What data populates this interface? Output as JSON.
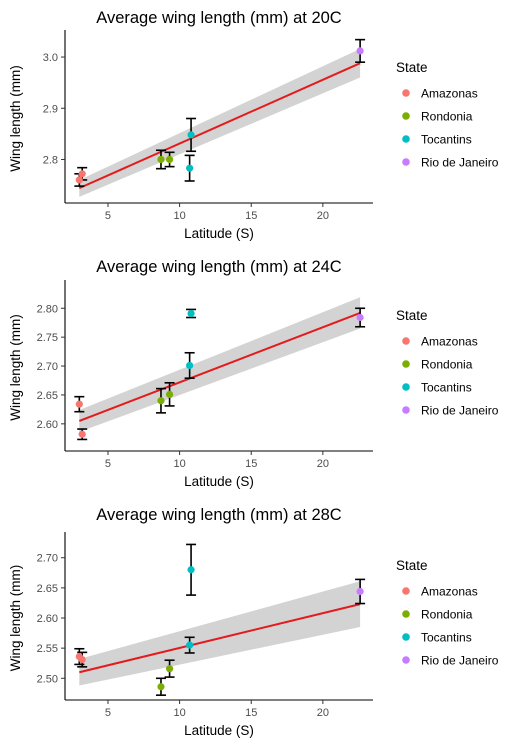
{
  "chart_data": [
    {
      "type": "scatter",
      "title": "Average wing length (mm) at 20C",
      "xlabel": "Latitude (S)",
      "ylabel": "Wing length (mm)",
      "xlim": [
        2,
        23.5
      ],
      "ylim": [
        2.715,
        3.045
      ],
      "xticks": [
        5,
        10,
        15,
        20
      ],
      "yticks": [
        2.8,
        2.9,
        3.0
      ],
      "ytick_labels": [
        "2.8",
        "2.9",
        "3.0"
      ],
      "points": [
        {
          "state": "Amazonas",
          "x": 3.0,
          "y": 2.76,
          "err": 0.012
        },
        {
          "state": "Amazonas",
          "x": 3.2,
          "y": 2.772,
          "err": 0.012
        },
        {
          "state": "Rondonia",
          "x": 8.7,
          "y": 2.8,
          "err": 0.018
        },
        {
          "state": "Rondonia",
          "x": 9.3,
          "y": 2.8,
          "err": 0.014
        },
        {
          "state": "Tocantins",
          "x": 10.7,
          "y": 2.783,
          "err": 0.025
        },
        {
          "state": "Tocantins",
          "x": 10.8,
          "y": 2.848,
          "err": 0.032
        },
        {
          "state": "Rio de Janeiro",
          "x": 22.6,
          "y": 3.012,
          "err": 0.022
        }
      ],
      "fit": {
        "x": [
          3.0,
          22.6
        ],
        "y": [
          2.744,
          2.988
        ],
        "band_start": [
          2.727,
          2.76
        ],
        "band_end": [
          2.96,
          3.016
        ]
      }
    },
    {
      "type": "scatter",
      "title": "Average wing length (mm) at 24C",
      "xlabel": "Latitude (S)",
      "ylabel": "Wing length (mm)",
      "xlim": [
        2,
        23.5
      ],
      "ylim": [
        2.553,
        2.842
      ],
      "xticks": [
        5,
        10,
        15,
        20
      ],
      "yticks": [
        2.6,
        2.65,
        2.7,
        2.75,
        2.8
      ],
      "ytick_labels": [
        "2.60",
        "2.65",
        "2.70",
        "2.75",
        "2.80"
      ],
      "points": [
        {
          "state": "Amazonas",
          "x": 3.0,
          "y": 2.634,
          "err": 0.013
        },
        {
          "state": "Amazonas",
          "x": 3.2,
          "y": 2.582,
          "err": 0.009
        },
        {
          "state": "Rondonia",
          "x": 8.7,
          "y": 2.64,
          "err": 0.021
        },
        {
          "state": "Rondonia",
          "x": 9.3,
          "y": 2.651,
          "err": 0.02
        },
        {
          "state": "Tocantins",
          "x": 10.7,
          "y": 2.701,
          "err": 0.022
        },
        {
          "state": "Tocantins",
          "x": 10.8,
          "y": 2.791,
          "err": 0.007
        },
        {
          "state": "Rio de Janeiro",
          "x": 22.6,
          "y": 2.784,
          "err": 0.016
        }
      ],
      "fit": {
        "x": [
          3.0,
          22.6
        ],
        "y": [
          2.605,
          2.792
        ],
        "band_start": [
          2.586,
          2.624
        ],
        "band_end": [
          2.765,
          2.819
        ]
      }
    },
    {
      "type": "scatter",
      "title": "Average wing length (mm) at 28C",
      "xlabel": "Latitude (S)",
      "ylabel": "Wing length (mm)",
      "xlim": [
        2,
        23.5
      ],
      "ylim": [
        2.464,
        2.736
      ],
      "xticks": [
        5,
        10,
        15,
        20
      ],
      "yticks": [
        2.5,
        2.55,
        2.6,
        2.65,
        2.7
      ],
      "ytick_labels": [
        "2.50",
        "2.55",
        "2.60",
        "2.65",
        "2.70"
      ],
      "points": [
        {
          "state": "Amazonas",
          "x": 3.0,
          "y": 2.536,
          "err": 0.013
        },
        {
          "state": "Amazonas",
          "x": 3.2,
          "y": 2.531,
          "err": 0.012
        },
        {
          "state": "Rondonia",
          "x": 8.7,
          "y": 2.486,
          "err": 0.014
        },
        {
          "state": "Rondonia",
          "x": 9.3,
          "y": 2.516,
          "err": 0.014
        },
        {
          "state": "Tocantins",
          "x": 10.7,
          "y": 2.555,
          "err": 0.013
        },
        {
          "state": "Tocantins",
          "x": 10.8,
          "y": 2.68,
          "err": 0.042
        },
        {
          "state": "Rio de Janeiro",
          "x": 22.6,
          "y": 2.644,
          "err": 0.02
        }
      ],
      "fit": {
        "x": [
          3.0,
          22.6
        ],
        "y": [
          2.51,
          2.623
        ],
        "band_start": [
          2.488,
          2.532
        ],
        "band_end": [
          2.585,
          2.661
        ]
      }
    }
  ],
  "legend": {
    "title": "State",
    "entries": [
      {
        "label": "Amazonas",
        "color": "#F8766D"
      },
      {
        "label": "Rondonia",
        "color": "#7CAE00"
      },
      {
        "label": "Tocantins",
        "color": "#00BFC4"
      },
      {
        "label": "Rio de Janeiro",
        "color": "#C77CFF"
      }
    ]
  },
  "colors": {
    "fit_line": "#E41A1C",
    "band": "#D3D3D3",
    "errorbar": "#000000",
    "axis": "#000000"
  }
}
